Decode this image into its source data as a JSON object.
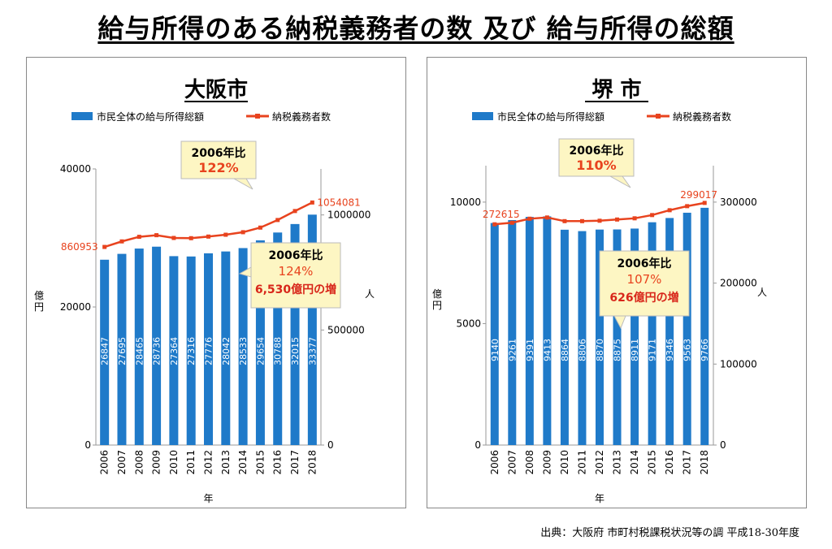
{
  "page_title": "給与所得のある納税義務者の数 及び 給与所得の総額",
  "source": "出典：大阪府 市町村税課税状況等の調 平成18-30年度",
  "colors": {
    "bar": "#1f7ac9",
    "line": "#e8431e",
    "line_label": "#e8431e"
  },
  "chart_data": [
    {
      "type": "bar",
      "title": "大阪市",
      "categories": [
        "2006",
        "2007",
        "2008",
        "2009",
        "2010",
        "2011",
        "2012",
        "2013",
        "2014",
        "2015",
        "2016",
        "2017",
        "2018"
      ],
      "xlabel": "年",
      "ylabel": "億円",
      "y2label": "人",
      "ylim": [
        0,
        40000
      ],
      "yticks": [
        "0",
        "20000",
        "40000"
      ],
      "y2lim": [
        0,
        1200000
      ],
      "y2ticks": [
        "0",
        "500000",
        "1000000"
      ],
      "legend": {
        "position": "top",
        "bar_label": "市民全体の給与所得総額",
        "line_label": "納税義務者数"
      },
      "series": [
        {
          "name": "市民全体の給与所得総額",
          "type": "bar",
          "axis": "left",
          "values": [
            26847,
            27695,
            28465,
            28736,
            27364,
            27316,
            27776,
            28042,
            28533,
            29654,
            30788,
            32015,
            33377
          ]
        },
        {
          "name": "納税義務者数",
          "type": "line",
          "axis": "right",
          "values": [
            860953,
            885000,
            905000,
            912000,
            900000,
            899000,
            906000,
            914000,
            925000,
            945000,
            978000,
            1017000,
            1054081
          ],
          "labeled_points": {
            "first": "860953",
            "last": "1054081"
          }
        }
      ],
      "annotations": [
        {
          "kind": "callout",
          "line1": "2006年比",
          "line2": "122%"
        },
        {
          "kind": "callout",
          "line1": "2006年比",
          "line2": "124%",
          "line3": "6,530億円の増"
        }
      ]
    },
    {
      "type": "bar",
      "title": "堺 市",
      "categories": [
        "2006",
        "2007",
        "2008",
        "2009",
        "2010",
        "2011",
        "2012",
        "2013",
        "2014",
        "2015",
        "2016",
        "2017",
        "2018"
      ],
      "xlabel": "年",
      "ylabel": "億円",
      "y2label": "人",
      "ylim": [
        0,
        11500
      ],
      "yticks": [
        "0",
        "5000",
        "10000"
      ],
      "y2lim": [
        0,
        345000
      ],
      "y2ticks": [
        "0",
        "100000",
        "200000",
        "300000"
      ],
      "legend": {
        "position": "top",
        "bar_label": "市民全体の給与所得総額",
        "line_label": "納税義務者数"
      },
      "series": [
        {
          "name": "市民全体の給与所得総額",
          "type": "bar",
          "axis": "left",
          "values": [
            9140,
            9261,
            9391,
            9413,
            8864,
            8806,
            8870,
            8875,
            8911,
            9171,
            9346,
            9563,
            9766
          ]
        },
        {
          "name": "納税義務者数",
          "type": "line",
          "axis": "right",
          "values": [
            272615,
            274500,
            279500,
            281000,
            276500,
            276500,
            277000,
            278500,
            280000,
            284000,
            290000,
            295000,
            299017
          ],
          "labeled_points": {
            "first": "272615",
            "last": "299017"
          }
        }
      ],
      "annotations": [
        {
          "kind": "callout",
          "line1": "2006年比",
          "line2": "110%"
        },
        {
          "kind": "callout",
          "line1": "2006年比",
          "line2": "107%",
          "line3": "626億円の増"
        }
      ]
    }
  ]
}
